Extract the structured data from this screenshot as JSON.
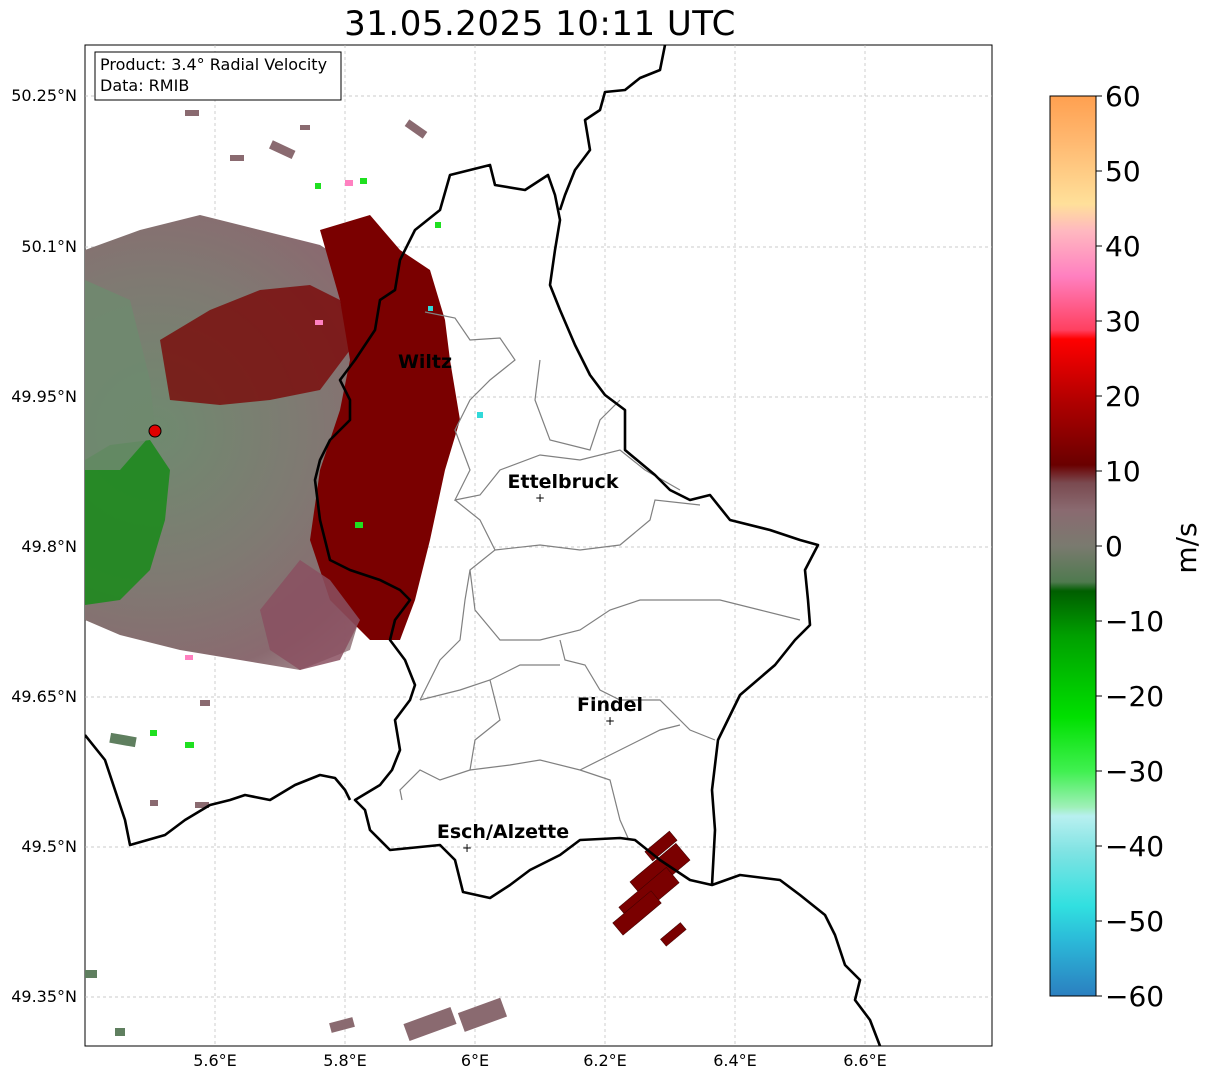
{
  "title": "31.05.2025 10:11 UTC",
  "info_box": {
    "product": "Product: 3.4° Radial Velocity",
    "data": "Data: RMIB"
  },
  "lat_ticks": [
    "50.25°N",
    "50.1°N",
    "49.95°N",
    "49.8°N",
    "49.65°N",
    "49.5°N",
    "49.35°N"
  ],
  "lon_ticks": [
    "5.6°E",
    "5.8°E",
    "6°E",
    "6.2°E",
    "6.4°E",
    "6.6°E"
  ],
  "cities": [
    {
      "name": "Wiltz",
      "lon": 5.95,
      "lat": 49.97
    },
    {
      "name": "Ettelbruck",
      "lon": 6.1,
      "lat": 49.85
    },
    {
      "name": "Findel",
      "lon": 6.21,
      "lat": 49.63
    },
    {
      "name": "Esch/Alzette",
      "lon": 5.99,
      "lat": 49.5
    }
  ],
  "radar_site": {
    "lon": 5.51,
    "lat": 49.915
  },
  "colorbar": {
    "label": "m/s",
    "ticks": [
      "60",
      "50",
      "40",
      "30",
      "20",
      "10",
      "0",
      "−10",
      "−20",
      "−30",
      "−40",
      "−50",
      "−60"
    ],
    "min": -60,
    "max": 60
  },
  "colors": {
    "inbound_far": "#2b7fc0",
    "inbound_fast": "#31d9d9",
    "inbound_mid": "#1fe020",
    "inbound_slow": "#005e00",
    "near_zero_green": "#5f7f5f",
    "near_zero_mauve": "#8a6a70",
    "outbound_slow": "#7a0000",
    "outbound_mid": "#e00000",
    "outbound_pink": "#ff80c0",
    "outbound_fast": "#ffa050"
  }
}
